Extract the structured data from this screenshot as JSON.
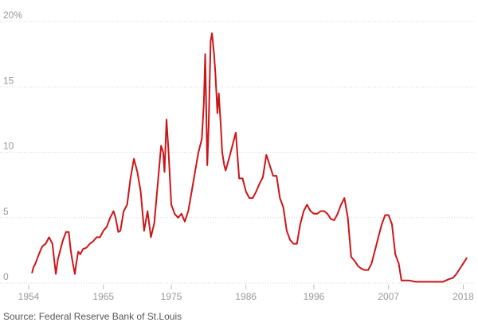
{
  "chart_data": {
    "type": "line",
    "title": "",
    "xlabel": "",
    "ylabel": "",
    "x_ticks": [
      "1954",
      "1965",
      "1975",
      "1986",
      "1996",
      "2007",
      "2018"
    ],
    "y_ticks": [
      "0",
      "5",
      "10",
      "15",
      "20%"
    ],
    "xlim": [
      1954,
      2019
    ],
    "ylim": [
      0,
      20
    ],
    "grid": "horizontal dotted",
    "legend": "none",
    "series": [
      {
        "color": "#cc1518",
        "x": [
          1954.5,
          1954.7,
          1955.0,
          1955.5,
          1956.0,
          1956.5,
          1957.0,
          1957.5,
          1957.8,
          1958.0,
          1958.3,
          1958.6,
          1959.0,
          1959.5,
          1959.9,
          1960.2,
          1960.5,
          1960.8,
          1961.0,
          1961.3,
          1961.6,
          1962.0,
          1962.5,
          1963.0,
          1963.5,
          1964.0,
          1964.5,
          1965.0,
          1965.5,
          1966.0,
          1966.5,
          1966.8,
          1967.2,
          1967.5,
          1968.0,
          1968.5,
          1969.0,
          1969.5,
          1970.0,
          1970.5,
          1971.0,
          1971.5,
          1972.0,
          1972.5,
          1973.0,
          1973.5,
          1973.8,
          1974.0,
          1974.3,
          1974.6,
          1975.0,
          1975.5,
          1976.0,
          1976.5,
          1977.0,
          1977.5,
          1978.0,
          1978.5,
          1979.0,
          1979.5,
          1979.8,
          1980.0,
          1980.3,
          1980.5,
          1980.8,
          1981.0,
          1981.3,
          1981.5,
          1981.8,
          1982.0,
          1982.3,
          1982.5,
          1982.8,
          1983.0,
          1983.5,
          1984.0,
          1984.5,
          1985.0,
          1985.5,
          1986.0,
          1986.5,
          1987.0,
          1987.5,
          1988.0,
          1988.5,
          1989.0,
          1989.5,
          1990.0,
          1990.5,
          1991.0,
          1991.5,
          1992.0,
          1992.5,
          1993.0,
          1993.5,
          1994.0,
          1994.5,
          1995.0,
          1995.5,
          1996.0,
          1996.5,
          1997.0,
          1997.5,
          1998.0,
          1998.5,
          1999.0,
          1999.5,
          2000.0,
          2000.5,
          2001.0,
          2001.5,
          2002.0,
          2002.5,
          2003.0,
          2003.5,
          2004.0,
          2004.5,
          2005.0,
          2005.5,
          2006.0,
          2006.5,
          2007.0,
          2007.5,
          2008.0,
          2008.5,
          2008.9,
          2009.5,
          2010.0,
          2011.0,
          2012.0,
          2013.0,
          2014.0,
          2015.0,
          2015.9,
          2016.5,
          2017.0,
          2017.5,
          2018.0,
          2018.5
        ],
        "values": [
          0.8,
          1.2,
          1.5,
          2.2,
          2.8,
          3.0,
          3.5,
          3.0,
          1.6,
          0.7,
          1.8,
          2.4,
          3.2,
          3.9,
          3.9,
          2.5,
          1.5,
          0.7,
          1.5,
          2.4,
          2.2,
          2.6,
          2.7,
          3.0,
          3.2,
          3.5,
          3.5,
          4.0,
          4.3,
          5.0,
          5.5,
          5.0,
          3.9,
          4.0,
          5.5,
          6.0,
          8.0,
          9.5,
          8.5,
          7.0,
          4.0,
          5.5,
          3.5,
          4.6,
          7.5,
          10.5,
          10.0,
          8.5,
          12.5,
          10.0,
          6.0,
          5.3,
          5.0,
          5.3,
          4.7,
          5.5,
          7.0,
          8.5,
          10.0,
          11.0,
          13.8,
          17.5,
          9.0,
          12.0,
          18.5,
          19.1,
          17.5,
          16.0,
          13.0,
          14.5,
          12.0,
          10.0,
          9.0,
          8.6,
          9.5,
          10.5,
          11.5,
          8.0,
          8.0,
          7.0,
          6.5,
          6.5,
          7.0,
          7.6,
          8.1,
          9.8,
          9.0,
          8.2,
          8.2,
          6.5,
          5.8,
          4.0,
          3.3,
          3.0,
          3.0,
          4.5,
          5.5,
          6.0,
          5.5,
          5.3,
          5.3,
          5.5,
          5.5,
          5.3,
          4.9,
          4.8,
          5.3,
          6.0,
          6.5,
          5.0,
          2.0,
          1.7,
          1.3,
          1.1,
          1.0,
          1.0,
          1.5,
          2.5,
          3.5,
          4.5,
          5.2,
          5.2,
          4.5,
          2.2,
          1.5,
          0.2,
          0.2,
          0.2,
          0.1,
          0.1,
          0.1,
          0.1,
          0.1,
          0.3,
          0.4,
          0.7,
          1.1,
          1.5,
          1.9
        ]
      }
    ]
  },
  "source_text": "Source: Federal Reserve Bank of St.Louis"
}
